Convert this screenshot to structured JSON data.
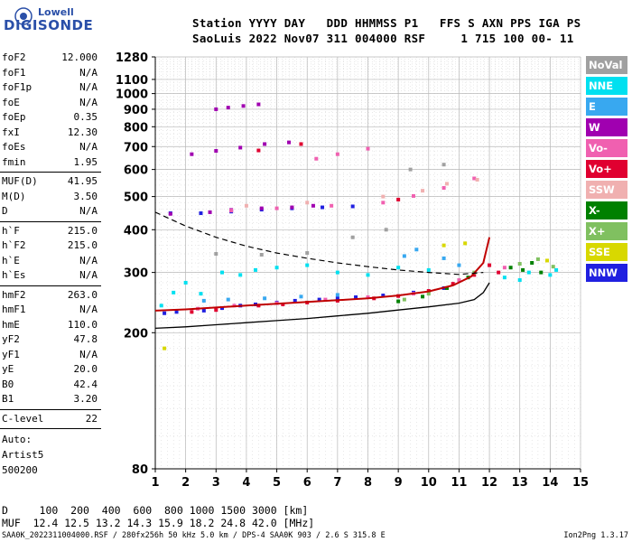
{
  "logo": {
    "line1": "Lowell",
    "line2": "DIGISONDE"
  },
  "header": {
    "line1": "Station YYYY DAY   DDD HHMMSS P1   FFS S AXN PPS IGA PS",
    "line2": "SaoLuis 2022 Nov07 311 004000 RSF     1 715 100 00- 11"
  },
  "params": [
    [
      {
        "label": "foF2",
        "value": "12.000"
      },
      {
        "label": "foF1",
        "value": "N/A"
      },
      {
        "label": "foF1p",
        "value": "N/A"
      },
      {
        "label": "foE",
        "value": "N/A"
      },
      {
        "label": "foEp",
        "value": "0.35"
      },
      {
        "label": "fxI",
        "value": "12.30"
      },
      {
        "label": "foEs",
        "value": "N/A"
      },
      {
        "label": "fmin",
        "value": "1.95"
      }
    ],
    [
      {
        "label": "MUF(D)",
        "value": "41.95"
      },
      {
        "label": "M(D)",
        "value": "3.50"
      },
      {
        "label": "D",
        "value": "N/A"
      }
    ],
    [
      {
        "label": "h`F",
        "value": "215.0"
      },
      {
        "label": "h`F2",
        "value": "215.0"
      },
      {
        "label": "h`E",
        "value": "N/A"
      },
      {
        "label": "h`Es",
        "value": "N/A"
      }
    ],
    [
      {
        "label": "hmF2",
        "value": "263.0"
      },
      {
        "label": "hmF1",
        "value": "N/A"
      },
      {
        "label": "hmE",
        "value": "110.0"
      },
      {
        "label": "yF2",
        "value": "47.8"
      },
      {
        "label": "yF1",
        "value": "N/A"
      },
      {
        "label": "yE",
        "value": "20.0"
      },
      {
        "label": "B0",
        "value": "42.4"
      },
      {
        "label": "B1",
        "value": "3.20"
      }
    ],
    [
      {
        "label": "C-level",
        "value": "22"
      }
    ]
  ],
  "auto": {
    "line1": "Auto:",
    "line2": "Artist5",
    "line3": "500200"
  },
  "muf_table": {
    "d_line": "D     100  200  400  600  800 1000 1500 3000 [km]",
    "muf_line": "MUF  12.4 12.5 13.2 14.3 15.9 18.2 24.8 42.0 [MHz]"
  },
  "footer": "SAA0K_2022311004000.RSF / 280fx256h 50 kHz 5.0 km / DPS-4 SAA0K 903 / 2.6 S 315.8 E",
  "version": "Ion2Png 1.3.17",
  "legend": [
    {
      "label": "NoVal",
      "color": "#a0a0a0"
    },
    {
      "label": "NNE",
      "color": "#00e0f0"
    },
    {
      "label": "E",
      "color": "#38a8f0"
    },
    {
      "label": "W",
      "color": "#a000b0"
    },
    {
      "label": "Vo-",
      "color": "#f060b0"
    },
    {
      "label": "Vo+",
      "color": "#e00030"
    },
    {
      "label": "SSW",
      "color": "#f0b0b0"
    },
    {
      "label": "X-",
      "color": "#008000"
    },
    {
      "label": "X+",
      "color": "#80c060"
    },
    {
      "label": "SSE",
      "color": "#d8d800"
    },
    {
      "label": "NNW",
      "color": "#2020e0"
    }
  ],
  "chart_data": {
    "type": "scatter",
    "xlabel": "",
    "ylabel": "",
    "xlim": [
      1,
      15
    ],
    "ylim": [
      80,
      1280
    ],
    "y_scale": "log",
    "x_ticks": [
      "1",
      "2",
      "3",
      "4",
      "5",
      "6",
      "7",
      "8",
      "9",
      "10",
      "11",
      "12",
      "13",
      "14",
      "15"
    ],
    "y_ticks": [
      "80",
      "200",
      "300",
      "400",
      "500",
      "600",
      "700",
      "800",
      "900",
      "1000",
      "1100",
      "1280"
    ],
    "grid": true,
    "series": [
      {
        "name": "Vo+",
        "color": "#e00030",
        "points": [
          [
            2.2,
            230
          ],
          [
            3,
            233
          ],
          [
            4.4,
            240
          ],
          [
            5.2,
            242
          ],
          [
            6,
            245
          ],
          [
            7,
            248
          ],
          [
            8.2,
            252
          ],
          [
            9,
            256
          ],
          [
            10,
            265
          ],
          [
            10.8,
            278
          ],
          [
            11.5,
            295
          ],
          [
            12,
            315
          ],
          [
            4.4,
            682
          ],
          [
            5.8,
            712
          ],
          [
            9,
            490
          ],
          [
            12.3,
            300
          ]
        ]
      },
      {
        "name": "NNW",
        "color": "#2020e0",
        "points": [
          [
            1.3,
            228
          ],
          [
            1.7,
            230
          ],
          [
            2.6,
            232
          ],
          [
            3.2,
            236
          ],
          [
            3.8,
            240
          ],
          [
            4.3,
            242
          ],
          [
            5,
            245
          ],
          [
            5.6,
            248
          ],
          [
            6.4,
            250
          ],
          [
            7,
            252
          ],
          [
            7.6,
            254
          ],
          [
            8.5,
            257
          ],
          [
            9.5,
            262
          ],
          [
            10.5,
            270
          ],
          [
            1.5,
            447
          ],
          [
            2.5,
            447
          ],
          [
            3.5,
            452
          ],
          [
            4.5,
            458
          ],
          [
            5.5,
            462
          ],
          [
            6.5,
            465
          ],
          [
            7.5,
            468
          ]
        ]
      },
      {
        "name": "W",
        "color": "#a000b0",
        "points": [
          [
            1.5,
            445
          ],
          [
            2.8,
            450
          ],
          [
            3.5,
            457
          ],
          [
            4.5,
            462
          ],
          [
            5.5,
            465
          ],
          [
            6.2,
            470
          ],
          [
            3,
            900
          ],
          [
            3.4,
            910
          ],
          [
            3.9,
            920
          ],
          [
            4.4,
            930
          ],
          [
            2.2,
            665
          ],
          [
            3,
            680
          ],
          [
            3.8,
            695
          ],
          [
            4.6,
            712
          ],
          [
            5.4,
            720
          ]
        ]
      },
      {
        "name": "Vo-",
        "color": "#f060b0",
        "points": [
          [
            2.4,
            235
          ],
          [
            3.6,
            240
          ],
          [
            5,
            244
          ],
          [
            6.6,
            250
          ],
          [
            8,
            254
          ],
          [
            9.5,
            260
          ],
          [
            11,
            285
          ],
          [
            3.5,
            455
          ],
          [
            5,
            462
          ],
          [
            6.8,
            470
          ],
          [
            8.5,
            480
          ],
          [
            9.5,
            502
          ],
          [
            10.5,
            530
          ],
          [
            11.5,
            565
          ],
          [
            6.3,
            645
          ],
          [
            7,
            665
          ],
          [
            8,
            690
          ],
          [
            12.5,
            310
          ]
        ]
      },
      {
        "name": "NNE",
        "color": "#00e0f0",
        "points": [
          [
            1.2,
            240
          ],
          [
            1.6,
            262
          ],
          [
            2,
            280
          ],
          [
            2.5,
            260
          ],
          [
            3.2,
            300
          ],
          [
            3.8,
            295
          ],
          [
            4.3,
            305
          ],
          [
            5,
            310
          ],
          [
            6,
            315
          ],
          [
            7,
            300
          ],
          [
            8,
            295
          ],
          [
            9,
            310
          ],
          [
            10,
            305
          ],
          [
            12.5,
            290
          ],
          [
            13,
            285
          ],
          [
            13.3,
            300
          ],
          [
            14,
            295
          ],
          [
            14.2,
            305
          ]
        ]
      },
      {
        "name": "E",
        "color": "#38a8f0",
        "points": [
          [
            2.6,
            248
          ],
          [
            3.4,
            250
          ],
          [
            4.6,
            252
          ],
          [
            5.8,
            255
          ],
          [
            7,
            258
          ],
          [
            9.2,
            335
          ],
          [
            9.6,
            350
          ],
          [
            10.5,
            330
          ],
          [
            11,
            315
          ]
        ]
      },
      {
        "name": "X-",
        "color": "#008000",
        "points": [
          [
            9,
            247
          ],
          [
            9.8,
            255
          ],
          [
            10.6,
            270
          ],
          [
            11.3,
            290
          ],
          [
            12.7,
            310
          ],
          [
            13.1,
            305
          ],
          [
            13.4,
            320
          ],
          [
            13.7,
            300
          ]
        ]
      },
      {
        "name": "X+",
        "color": "#80c060",
        "points": [
          [
            9.2,
            250
          ],
          [
            10,
            260
          ],
          [
            11.5,
            300
          ],
          [
            13,
            318
          ],
          [
            13.6,
            328
          ],
          [
            14.1,
            312
          ]
        ]
      },
      {
        "name": "SSE",
        "color": "#d8d800",
        "points": [
          [
            10.5,
            360
          ],
          [
            11.2,
            365
          ],
          [
            1.3,
            180
          ],
          [
            13.9,
            325
          ]
        ]
      },
      {
        "name": "SSW",
        "color": "#f0b0b0",
        "points": [
          [
            4,
            470
          ],
          [
            6,
            480
          ],
          [
            8.5,
            500
          ],
          [
            9.8,
            520
          ],
          [
            10.6,
            545
          ],
          [
            11.6,
            560
          ]
        ]
      },
      {
        "name": "NoVal",
        "color": "#a0a0a0",
        "points": [
          [
            3,
            340
          ],
          [
            4.5,
            338
          ],
          [
            6,
            342
          ],
          [
            7.5,
            380
          ],
          [
            8.6,
            400
          ],
          [
            9.4,
            600
          ],
          [
            10.5,
            620
          ]
        ]
      }
    ],
    "profile_solid": [
      [
        1,
        206
      ],
      [
        2,
        208
      ],
      [
        3,
        211
      ],
      [
        4,
        214
      ],
      [
        5,
        217
      ],
      [
        6,
        220
      ],
      [
        7,
        224
      ],
      [
        8,
        228
      ],
      [
        9,
        233
      ],
      [
        10,
        238
      ],
      [
        11,
        244
      ],
      [
        11.5,
        250
      ],
      [
        11.8,
        262
      ],
      [
        12,
        280
      ]
    ],
    "profile_dashed": [
      [
        1,
        450
      ],
      [
        2,
        410
      ],
      [
        3,
        380
      ],
      [
        4,
        358
      ],
      [
        5,
        342
      ],
      [
        6,
        330
      ],
      [
        7,
        320
      ],
      [
        8,
        312
      ],
      [
        9,
        305
      ],
      [
        10,
        300
      ],
      [
        11,
        296
      ],
      [
        11.8,
        300
      ]
    ],
    "trace_fit": [
      [
        1,
        232
      ],
      [
        2,
        234
      ],
      [
        3,
        237
      ],
      [
        4,
        240
      ],
      [
        5,
        243
      ],
      [
        6,
        246
      ],
      [
        7,
        249
      ],
      [
        8,
        252
      ],
      [
        9,
        257
      ],
      [
        10,
        264
      ],
      [
        10.8,
        275
      ],
      [
        11.4,
        292
      ],
      [
        11.8,
        320
      ],
      [
        12,
        380
      ]
    ]
  }
}
